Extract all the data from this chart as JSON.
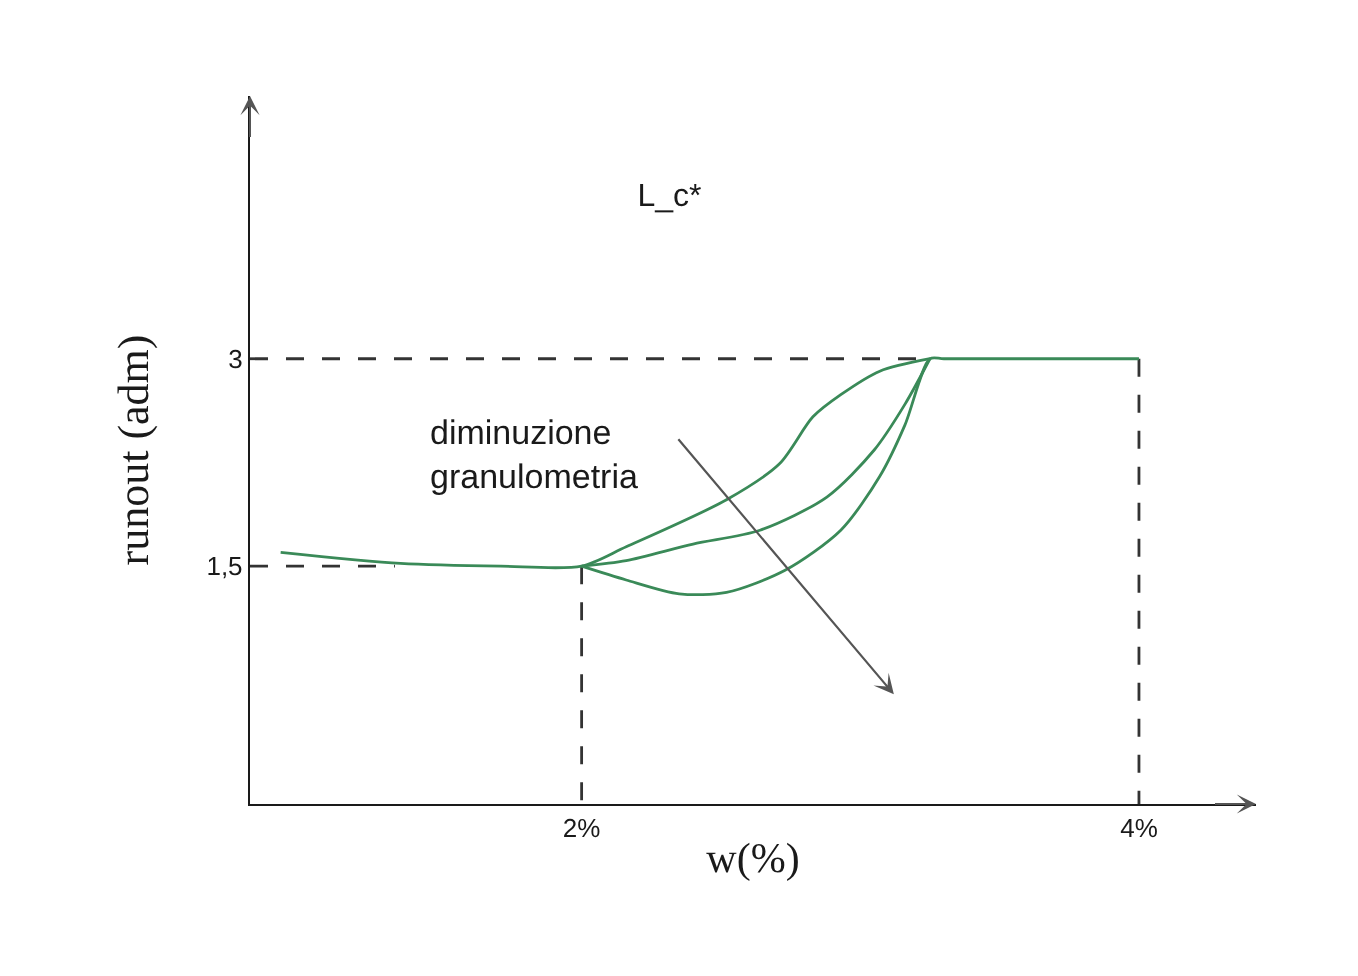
{
  "chart_data": {
    "type": "line",
    "title": "L_c*",
    "xlabel": "w(%)",
    "ylabel": "runout (adm)",
    "xlim": [
      0.81,
      4.42
    ],
    "ylim": [
      -0.22,
      4.9
    ],
    "xticks": [
      {
        "value": 2,
        "label": "2%"
      },
      {
        "value": 4,
        "label": "4%"
      }
    ],
    "yticks": [
      {
        "value": 1.5,
        "label": "1,5"
      },
      3
    ],
    "grid": false,
    "marker": "none",
    "annotations": [
      "diminuzione\ngranulometria"
    ],
    "series": [
      {
        "color": "#333333",
        "line_style": "dashed",
        "x": [
          0.81,
          1.33
        ],
        "values": [
          1.5,
          1.5
        ]
      },
      {
        "color": "#333333",
        "line_style": "dashed",
        "x": [
          2,
          2
        ],
        "values": [
          1.5,
          -0.22
        ]
      },
      {
        "color": "#333333",
        "line_style": "dashed",
        "x": [
          0.81,
          3.25
        ],
        "values": [
          3,
          3
        ]
      },
      {
        "color": "#333333",
        "line_style": "dashed",
        "x": [
          4,
          4
        ],
        "values": [
          3,
          -0.22
        ]
      },
      {
        "color": "#3a8a58",
        "line_style": "solid",
        "x": [
          0.92,
          1.35,
          1.71,
          2,
          2.16,
          2.52,
          2.71,
          2.83,
          2.93,
          3.07,
          3.25
        ],
        "values": [
          1.6,
          1.52,
          1.5,
          1.5,
          1.64,
          1.98,
          2.24,
          2.58,
          2.74,
          2.91,
          3
        ]
      },
      {
        "color": "#3a8a58",
        "line_style": "solid",
        "x": [
          2,
          2.16,
          2.4,
          2.64,
          2.88,
          3.05,
          3.16,
          3.25
        ],
        "values": [
          1.5,
          1.54,
          1.66,
          1.76,
          2.0,
          2.34,
          2.67,
          3
        ]
      },
      {
        "color": "#3a8a58",
        "line_style": "solid",
        "x": [
          2,
          2.16,
          2.35,
          2.52,
          2.73,
          2.93,
          3.07,
          3.16,
          3.25,
          3.3,
          3.6,
          4
        ],
        "values": [
          1.5,
          1.4,
          1.3,
          1.31,
          1.47,
          1.76,
          2.15,
          2.52,
          3,
          3,
          3,
          3
        ]
      }
    ]
  }
}
